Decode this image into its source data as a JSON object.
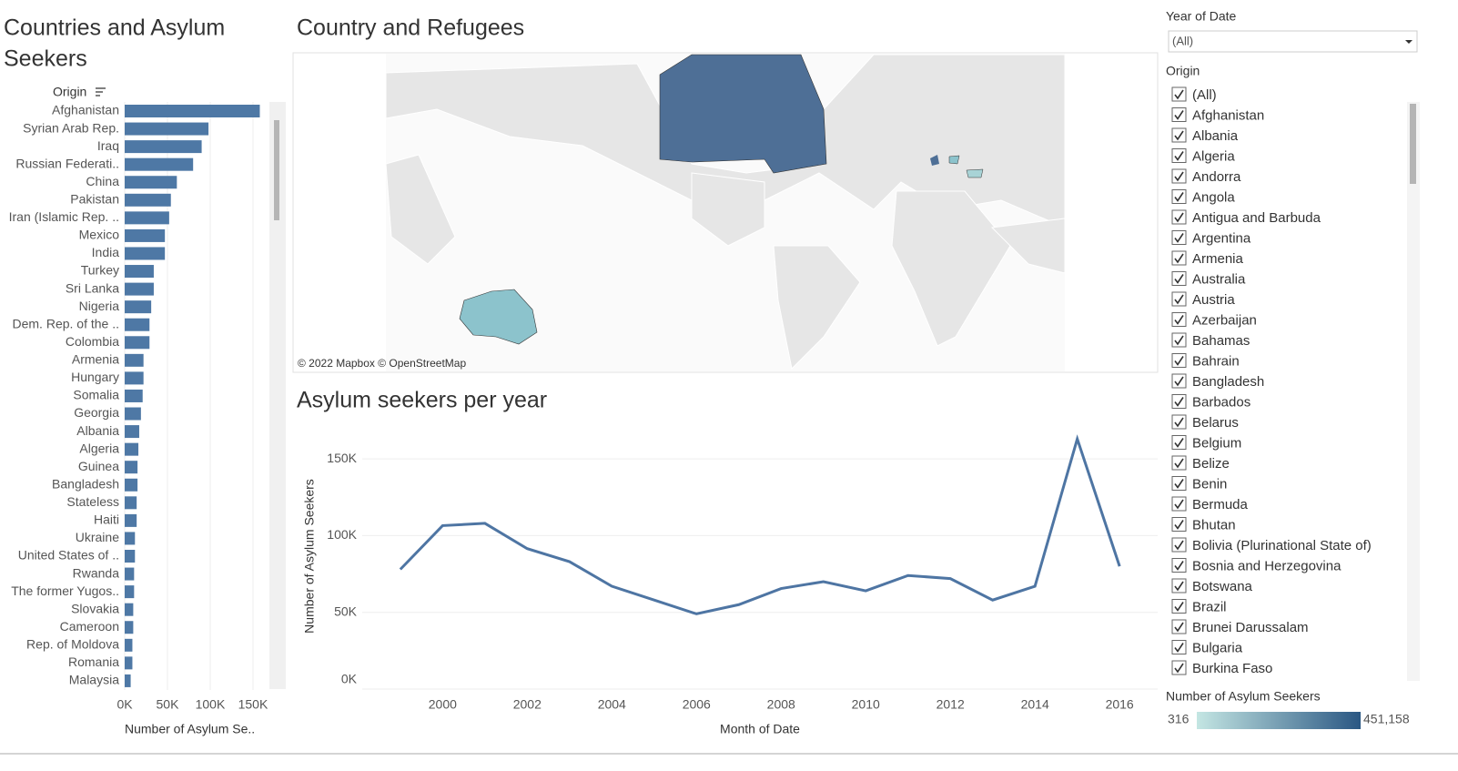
{
  "chart_data": [
    {
      "type": "bar",
      "title": "Countries and Asylum Seekers",
      "y_label": "Origin",
      "x_label": "Number of Asylum Se..",
      "categories": [
        "Afghanistan",
        "Syrian Arab Rep.",
        "Iraq",
        "Russian Federati..",
        "China",
        "Pakistan",
        "Iran (Islamic Rep. ..",
        "Mexico",
        "India",
        "Turkey",
        "Sri Lanka",
        "Nigeria",
        "Dem. Rep. of the ..",
        "Colombia",
        "Armenia",
        "Hungary",
        "Somalia",
        "Georgia",
        "Albania",
        "Algeria",
        "Guinea",
        "Bangladesh",
        "Stateless",
        "Haiti",
        "Ukraine",
        "United States of ..",
        "Rwanda",
        "The former Yugos..",
        "Slovakia",
        "Cameroon",
        "Rep. of Moldova",
        "Romania",
        "Malaysia"
      ],
      "values": [
        158000,
        98000,
        90000,
        80000,
        61000,
        54000,
        52000,
        47000,
        47000,
        34000,
        34000,
        31000,
        29000,
        29000,
        22000,
        22000,
        21000,
        19000,
        17000,
        16000,
        15000,
        15000,
        14000,
        14000,
        12000,
        12000,
        11000,
        11000,
        10000,
        10000,
        9000,
        9000,
        7000
      ],
      "color": "#4e78a5",
      "xlim": [
        0,
        166000
      ],
      "xticks": [
        {
          "value": 0,
          "label": "0K"
        },
        {
          "value": 50000,
          "label": "50K"
        },
        {
          "value": 100000,
          "label": "100K"
        },
        {
          "value": 150000,
          "label": "150K"
        }
      ]
    },
    {
      "type": "map",
      "title": "Country and Refugees",
      "attribution": "© 2022 Mapbox © OpenStreetMap"
    },
    {
      "type": "line",
      "title": "Asylum seekers per year",
      "x_label": "Month of Date",
      "y_label": "Number of Asylum Seekers",
      "x": [
        1999,
        2000,
        2001,
        2002,
        2003,
        2004,
        2005,
        2006,
        2007,
        2008,
        2009,
        2010,
        2011,
        2012,
        2013,
        2014,
        2015,
        2016
      ],
      "values": [
        78000,
        106500,
        108000,
        91500,
        83000,
        67000,
        58000,
        49000,
        55000,
        65500,
        70000,
        64000,
        74000,
        72000,
        58000,
        67000,
        163000,
        80000
      ],
      "color": "#4e75a3",
      "xlim": [
        1998.1,
        2016.9
      ],
      "xticks": [
        2000,
        2002,
        2004,
        2006,
        2008,
        2010,
        2012,
        2014,
        2016
      ],
      "ylim": [
        0,
        172000
      ],
      "yticks": [
        {
          "value": 0,
          "label": "0K"
        },
        {
          "value": 50000,
          "label": "50K"
        },
        {
          "value": 100000,
          "label": "100K"
        },
        {
          "value": 150000,
          "label": "150K"
        }
      ],
      "grid": true
    }
  ],
  "filters": {
    "year_label": "Year of Date",
    "year_value": "(All)",
    "origin_label": "Origin",
    "origins": [
      "(All)",
      "Afghanistan",
      "Albania",
      "Algeria",
      "Andorra",
      "Angola",
      "Antigua and Barbuda",
      "Argentina",
      "Armenia",
      "Australia",
      "Austria",
      "Azerbaijan",
      "Bahamas",
      "Bahrain",
      "Bangladesh",
      "Barbados",
      "Belarus",
      "Belgium",
      "Belize",
      "Benin",
      "Bermuda",
      "Bhutan",
      "Bolivia (Plurinational State of)",
      "Bosnia and Herzegovina",
      "Botswana",
      "Brazil",
      "Brunei Darussalam",
      "Bulgaria",
      "Burkina Faso"
    ]
  },
  "legend": {
    "title": "Number of Asylum Seekers",
    "min": 316,
    "max": {
      "value": 451158,
      "label": "451,158"
    },
    "colors": [
      "#c4e6e3",
      "#2a5783"
    ]
  }
}
